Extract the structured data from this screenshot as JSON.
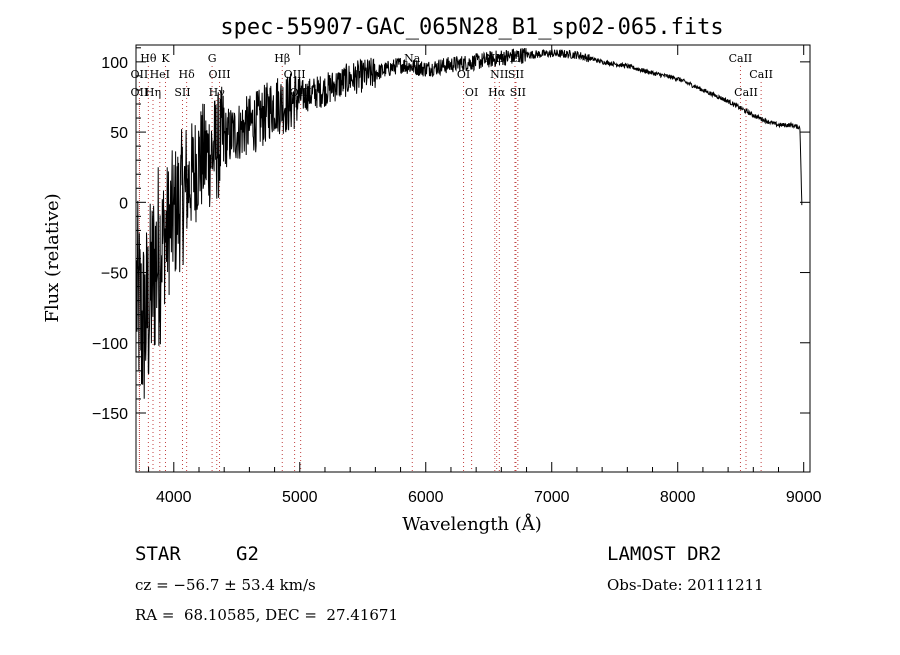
{
  "chart_data": {
    "type": "line",
    "title": "spec-55907-GAC_065N28_B1_sp02-065.fits",
    "xlabel": "Wavelength (Å)",
    "ylabel": "Flux (relative)",
    "xlim": [
      3700,
      9050
    ],
    "ylim": [
      -192,
      112
    ],
    "xticks": [
      "4000",
      "5000",
      "6000",
      "7000",
      "8000",
      "9000"
    ],
    "yticks": [
      "−150",
      "−100",
      "−50",
      "0",
      "50",
      "100"
    ],
    "grid": false,
    "spectrum_envelope": {
      "x": [
        3700,
        3750,
        3800,
        3850,
        3900,
        3950,
        4000,
        4050,
        4100,
        4150,
        4200,
        4300,
        4400,
        4500,
        4600,
        4700,
        4800,
        4900,
        5000,
        5200,
        5400,
        5600,
        5800,
        6000,
        6200,
        6400,
        6600,
        6800,
        7000,
        7200,
        7400,
        7600,
        7800,
        8000,
        8200,
        8400,
        8500,
        8600,
        8700,
        8800,
        8900,
        8980
      ],
      "y": [
        -60,
        -90,
        -75,
        -45,
        -30,
        -20,
        -10,
        0,
        10,
        20,
        30,
        35,
        45,
        50,
        55,
        60,
        70,
        70,
        75,
        80,
        88,
        92,
        98,
        95,
        98,
        100,
        103,
        105,
        106,
        105,
        100,
        97,
        92,
        88,
        80,
        72,
        67,
        62,
        58,
        55,
        55,
        53
      ]
    },
    "line_markers": [
      {
        "label": "Hθ",
        "x": 3798,
        "row": 1
      },
      {
        "label": "K",
        "x": 3934,
        "row": 1
      },
      {
        "label": "OII",
        "x": 3727,
        "row": 2
      },
      {
        "label": "HeI",
        "x": 3889,
        "row": 2
      },
      {
        "label": "Hδ",
        "x": 4102,
        "row": 2
      },
      {
        "label": "OII",
        "x": 3727,
        "row": 3
      },
      {
        "label": "Hη",
        "x": 3835,
        "row": 3
      },
      {
        "label": "SII",
        "x": 4069,
        "row": 3
      },
      {
        "label": "G",
        "x": 4304,
        "row": 1
      },
      {
        "label": "OIII",
        "x": 4363,
        "row": 2
      },
      {
        "label": "Hγ",
        "x": 4341,
        "row": 3
      },
      {
        "label": "Hβ",
        "x": 4861,
        "row": 1
      },
      {
        "label": "OIII",
        "x": 4959,
        "row": 2
      },
      {
        "label": "OIII",
        "x": 5007,
        "row": 3
      },
      {
        "label": "Na",
        "x": 5893,
        "row": 1
      },
      {
        "label": "OI",
        "x": 6300,
        "row": 2
      },
      {
        "label": "OI",
        "x": 6364,
        "row": 3
      },
      {
        "label": "NII",
        "x": 6548,
        "row": 1
      },
      {
        "label": "NII",
        "x": 6584,
        "row": 2
      },
      {
        "label": "Hα",
        "x": 6563,
        "row": 3
      },
      {
        "label": "Li",
        "x": 6708,
        "row": 1
      },
      {
        "label": "SII",
        "x": 6716,
        "row": 2
      },
      {
        "label": "SII",
        "x": 6731,
        "row": 3
      },
      {
        "label": "CaII",
        "x": 8498,
        "row": 1
      },
      {
        "label": "CaII",
        "x": 8662,
        "row": 2
      },
      {
        "label": "CaII",
        "x": 8542,
        "row": 3
      }
    ]
  },
  "info": {
    "class": "STAR",
    "subclass": "G2",
    "survey": "LAMOST DR2",
    "cz": "cz = −56.7 ± 53.4 km/s",
    "obs_date": "Obs-Date: 20111211",
    "coords": "RA =  68.10585, DEC =  27.41671"
  },
  "colors": {
    "marker_line": "#c04040",
    "spectrum": "#000000"
  }
}
